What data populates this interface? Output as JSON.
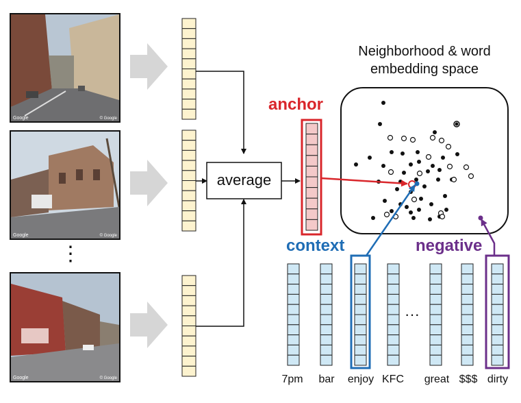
{
  "title_line1": "Neighborhood & word",
  "title_line2": "embedding space",
  "average_label": "average",
  "anchor_label": "anchor",
  "context_label": "context",
  "negative_label": "negative",
  "ellipsis_vertical": "⋮",
  "ellipsis_horizontal": "···",
  "photo_credit_left": "Google",
  "photo_credit_right": "© Google",
  "words": [
    "7pm",
    "bar",
    "enjoy",
    "KFC",
    "great",
    "$$$",
    "dirty"
  ],
  "colors": {
    "anchor": "#d9262b",
    "context": "#1f6db5",
    "negative": "#6b2f8a",
    "image_vector": "#fdf3cf",
    "anchor_vector": "#f4c9c9",
    "word_vector": "#cfe8f5",
    "big_arrow": "#d6d6d6"
  }
}
